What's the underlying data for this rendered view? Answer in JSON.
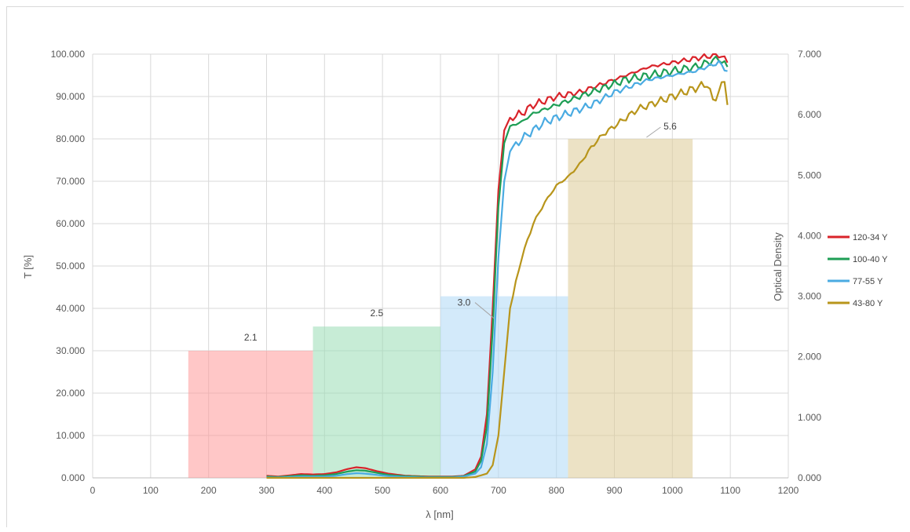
{
  "chart_data": {
    "type": "line",
    "xlabel": "λ [nm]",
    "ylabel": "T [%]",
    "y2label": "Optical Density",
    "xlim": [
      0,
      1200
    ],
    "ylim": [
      0,
      100
    ],
    "y2lim": [
      0,
      7
    ],
    "grid": true,
    "legend_position": "right",
    "x_ticks": [
      "0",
      "100",
      "200",
      "300",
      "400",
      "500",
      "600",
      "700",
      "800",
      "900",
      "1000",
      "1100",
      "1200"
    ],
    "y_ticks": [
      "0.000",
      "10.000",
      "20.000",
      "30.000",
      "40.000",
      "50.000",
      "60.000",
      "70.000",
      "80.000",
      "90.000",
      "100.000"
    ],
    "y2_ticks": [
      "0.000",
      "1.000",
      "2.000",
      "3.000",
      "4.000",
      "5.000",
      "6.000",
      "7.000"
    ],
    "bars": [
      {
        "label": "2.1",
        "x_start": 165,
        "x_end": 380,
        "od": 2.1,
        "color": "#ff9999"
      },
      {
        "label": "2.5",
        "x_start": 380,
        "x_end": 600,
        "od": 2.5,
        "color": "#99dcb4"
      },
      {
        "label": "3.0",
        "x_start": 600,
        "x_end": 820,
        "od": 3.0,
        "color": "#aed8f5"
      },
      {
        "label": "5.6",
        "x_start": 820,
        "x_end": 1035,
        "od": 5.6,
        "color": "#dccb96"
      }
    ],
    "series": [
      {
        "name": "120-34 Y",
        "color": "#d9232a",
        "points": [
          [
            300,
            0.5
          ],
          [
            320,
            0.3
          ],
          [
            340,
            0.6
          ],
          [
            360,
            0.9
          ],
          [
            380,
            0.8
          ],
          [
            400,
            0.9
          ],
          [
            420,
            1.3
          ],
          [
            440,
            2.1
          ],
          [
            455,
            2.5
          ],
          [
            470,
            2.3
          ],
          [
            490,
            1.6
          ],
          [
            510,
            1.0
          ],
          [
            540,
            0.5
          ],
          [
            580,
            0.3
          ],
          [
            620,
            0.3
          ],
          [
            640,
            0.5
          ],
          [
            660,
            2
          ],
          [
            670,
            5
          ],
          [
            680,
            15
          ],
          [
            690,
            40
          ],
          [
            700,
            68
          ],
          [
            710,
            82
          ],
          [
            720,
            85
          ],
          [
            740,
            86
          ],
          [
            760,
            88
          ],
          [
            780,
            89
          ],
          [
            800,
            90
          ],
          [
            820,
            90.5
          ],
          [
            840,
            91
          ],
          [
            860,
            92
          ],
          [
            880,
            93
          ],
          [
            900,
            94
          ],
          [
            920,
            95
          ],
          [
            940,
            96
          ],
          [
            960,
            97
          ],
          [
            980,
            97.5
          ],
          [
            1000,
            98
          ],
          [
            1020,
            98.5
          ],
          [
            1040,
            99
          ],
          [
            1060,
            99.5
          ],
          [
            1080,
            100
          ],
          [
            1095,
            98
          ]
        ]
      },
      {
        "name": "100-40 Y",
        "color": "#1e9e55",
        "points": [
          [
            300,
            0.3
          ],
          [
            320,
            0.2
          ],
          [
            340,
            0.4
          ],
          [
            360,
            0.6
          ],
          [
            380,
            0.5
          ],
          [
            400,
            0.6
          ],
          [
            420,
            0.9
          ],
          [
            440,
            1.5
          ],
          [
            455,
            1.8
          ],
          [
            470,
            1.7
          ],
          [
            490,
            1.2
          ],
          [
            510,
            0.7
          ],
          [
            540,
            0.4
          ],
          [
            580,
            0.2
          ],
          [
            620,
            0.2
          ],
          [
            640,
            0.4
          ],
          [
            660,
            1.5
          ],
          [
            670,
            4
          ],
          [
            680,
            12
          ],
          [
            690,
            35
          ],
          [
            700,
            64
          ],
          [
            710,
            79
          ],
          [
            720,
            83
          ],
          [
            740,
            84
          ],
          [
            760,
            86
          ],
          [
            780,
            87
          ],
          [
            800,
            88
          ],
          [
            820,
            89
          ],
          [
            840,
            90
          ],
          [
            860,
            91
          ],
          [
            880,
            92
          ],
          [
            900,
            93
          ],
          [
            920,
            94
          ],
          [
            940,
            94.5
          ],
          [
            960,
            95
          ],
          [
            980,
            95.5
          ],
          [
            1000,
            96
          ],
          [
            1020,
            96.5
          ],
          [
            1040,
            97
          ],
          [
            1060,
            98
          ],
          [
            1080,
            99
          ],
          [
            1095,
            97
          ]
        ]
      },
      {
        "name": "77-55 Y",
        "color": "#4aabe2",
        "points": [
          [
            300,
            0.1
          ],
          [
            320,
            0.1
          ],
          [
            340,
            0.2
          ],
          [
            360,
            0.3
          ],
          [
            380,
            0.3
          ],
          [
            400,
            0.3
          ],
          [
            420,
            0.5
          ],
          [
            440,
            0.9
          ],
          [
            455,
            1.1
          ],
          [
            470,
            1.0
          ],
          [
            490,
            0.7
          ],
          [
            510,
            0.4
          ],
          [
            540,
            0.2
          ],
          [
            580,
            0.1
          ],
          [
            620,
            0.1
          ],
          [
            640,
            0.3
          ],
          [
            660,
            1
          ],
          [
            670,
            2.5
          ],
          [
            680,
            8
          ],
          [
            690,
            25
          ],
          [
            700,
            52
          ],
          [
            710,
            70
          ],
          [
            720,
            77
          ],
          [
            740,
            80
          ],
          [
            760,
            82
          ],
          [
            780,
            84
          ],
          [
            800,
            85
          ],
          [
            820,
            86
          ],
          [
            840,
            87
          ],
          [
            860,
            88
          ],
          [
            880,
            89.5
          ],
          [
            900,
            91
          ],
          [
            920,
            92
          ],
          [
            940,
            93
          ],
          [
            960,
            94
          ],
          [
            980,
            94.5
          ],
          [
            1000,
            95
          ],
          [
            1020,
            95.5
          ],
          [
            1040,
            96
          ],
          [
            1060,
            97
          ],
          [
            1080,
            98
          ],
          [
            1095,
            96
          ]
        ]
      },
      {
        "name": "43-80 Y",
        "color": "#b8951b",
        "points": [
          [
            300,
            0
          ],
          [
            400,
            0
          ],
          [
            500,
            0
          ],
          [
            600,
            0
          ],
          [
            640,
            0
          ],
          [
            660,
            0.2
          ],
          [
            680,
            1
          ],
          [
            690,
            3
          ],
          [
            700,
            10
          ],
          [
            710,
            25
          ],
          [
            720,
            40
          ],
          [
            740,
            52
          ],
          [
            760,
            60
          ],
          [
            780,
            65
          ],
          [
            800,
            69
          ],
          [
            820,
            71
          ],
          [
            840,
            74
          ],
          [
            860,
            78
          ],
          [
            880,
            81
          ],
          [
            900,
            83
          ],
          [
            920,
            85
          ],
          [
            940,
            87
          ],
          [
            960,
            88
          ],
          [
            980,
            89
          ],
          [
            1000,
            90
          ],
          [
            1020,
            91
          ],
          [
            1040,
            92
          ],
          [
            1060,
            93
          ],
          [
            1070,
            89
          ],
          [
            1080,
            91
          ],
          [
            1090,
            94
          ],
          [
            1095,
            88
          ]
        ]
      }
    ]
  }
}
